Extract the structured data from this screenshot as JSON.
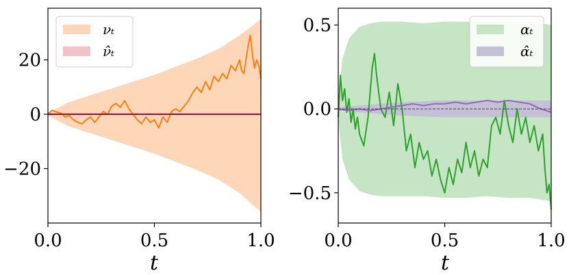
{
  "chart_data": [
    {
      "type": "line",
      "xlabel": "t",
      "xlim": [
        0.0,
        1.0
      ],
      "ylim": [
        -40,
        39
      ],
      "xticks": [
        0.0,
        0.5,
        1.0
      ],
      "xtick_labels": [
        "0.0",
        "0.5",
        "1.0"
      ],
      "yticks": [
        20,
        0,
        -20
      ],
      "ytick_labels": [
        "20",
        "0",
        "−20"
      ],
      "grid": false,
      "legend_position": "top-left",
      "series": [
        {
          "name": "νₜ",
          "kind": "band",
          "color": "#fdd7b8",
          "x": [
            0.0,
            0.1,
            0.2,
            0.3,
            0.4,
            0.5,
            0.6,
            0.7,
            0.8,
            0.9,
            1.0
          ],
          "upper": [
            0.5,
            4.5,
            7.0,
            9.5,
            12.0,
            14.5,
            17.5,
            20.5,
            24.0,
            29.0,
            35.0
          ],
          "lower": [
            -0.5,
            -4.5,
            -7.0,
            -9.5,
            -12.0,
            -14.5,
            -17.5,
            -20.5,
            -24.0,
            -29.0,
            -36.0
          ]
        },
        {
          "name": "ν̂ₜ",
          "kind": "band",
          "color": "#f2c3c6",
          "x": [
            0.0,
            0.5,
            1.0
          ],
          "upper": [
            0.5,
            0.5,
            0.5
          ],
          "lower": [
            -0.5,
            -0.5,
            -0.5
          ]
        },
        {
          "name": "nu-path",
          "kind": "line",
          "color": "#ff7f0e",
          "x": [
            0.0,
            0.02,
            0.04,
            0.06,
            0.08,
            0.1,
            0.12,
            0.14,
            0.16,
            0.18,
            0.2,
            0.22,
            0.24,
            0.26,
            0.28,
            0.3,
            0.32,
            0.34,
            0.36,
            0.38,
            0.4,
            0.42,
            0.44,
            0.46,
            0.48,
            0.5,
            0.52,
            0.54,
            0.56,
            0.58,
            0.6,
            0.62,
            0.64,
            0.66,
            0.68,
            0.7,
            0.72,
            0.74,
            0.76,
            0.78,
            0.8,
            0.82,
            0.84,
            0.86,
            0.88,
            0.9,
            0.91,
            0.92,
            0.93,
            0.94,
            0.95,
            0.96,
            0.97,
            0.98,
            0.99,
            1.0
          ],
          "y": [
            0.0,
            1.5,
            0.8,
            0.5,
            -1.0,
            -0.5,
            -2.0,
            -3.0,
            -3.5,
            -2.0,
            -1.0,
            -3.0,
            -1.0,
            1.0,
            0.0,
            3.0,
            4.0,
            2.5,
            5.0,
            2.0,
            0.0,
            -2.0,
            -3.5,
            -1.0,
            -3.0,
            -2.0,
            -5.0,
            -1.0,
            -3.0,
            1.0,
            2.0,
            1.0,
            3.0,
            5.0,
            8.0,
            10.0,
            8.0,
            12.0,
            9.0,
            14.0,
            12.0,
            15.0,
            13.0,
            18.0,
            16.0,
            20.0,
            16.0,
            15.0,
            20.0,
            25.0,
            29.0,
            22.0,
            17.0,
            20.0,
            18.0,
            13.0
          ]
        },
        {
          "name": "nu-hat-path",
          "kind": "line",
          "color": "#8b1a2b",
          "x": [
            0.0,
            1.0
          ],
          "y": [
            0.0,
            0.0
          ]
        }
      ]
    },
    {
      "type": "line",
      "xlabel": "t",
      "xlim": [
        0.0,
        1.0
      ],
      "ylim": [
        -0.68,
        0.6
      ],
      "xticks": [
        0.0,
        0.5,
        1.0
      ],
      "xtick_labels": [
        "0.0",
        "0.5",
        "1.0"
      ],
      "yticks": [
        0.5,
        0.0,
        -0.5
      ],
      "ytick_labels": [
        "0.5",
        "0.0",
        "−0.5"
      ],
      "grid": false,
      "legend_position": "top-right",
      "series": [
        {
          "name": "αₜ",
          "kind": "band",
          "color": "#c5e5c4",
          "x": [
            0.0,
            0.02,
            0.05,
            0.1,
            0.15,
            0.2,
            0.3,
            0.4,
            0.5,
            0.6,
            0.7,
            0.8,
            0.9,
            1.0
          ],
          "upper": [
            0.06,
            0.3,
            0.42,
            0.49,
            0.51,
            0.52,
            0.52,
            0.51,
            0.52,
            0.52,
            0.52,
            0.52,
            0.52,
            0.5
          ],
          "lower": [
            -0.06,
            -0.3,
            -0.42,
            -0.49,
            -0.51,
            -0.52,
            -0.52,
            -0.52,
            -0.53,
            -0.53,
            -0.52,
            -0.53,
            -0.53,
            -0.55
          ]
        },
        {
          "name": "α̂ₜ",
          "kind": "band",
          "color": "#c4c0d6",
          "x": [
            0.0,
            0.1,
            0.3,
            0.5,
            0.7,
            0.9,
            1.0
          ],
          "upper": [
            0.01,
            0.02,
            0.04,
            0.05,
            0.05,
            0.05,
            0.05
          ],
          "lower": [
            -0.01,
            -0.02,
            -0.04,
            -0.05,
            -0.05,
            -0.05,
            -0.05
          ]
        },
        {
          "name": "alpha-path",
          "kind": "line",
          "color": "#2ca02c",
          "x": [
            0.0,
            0.01,
            0.02,
            0.03,
            0.04,
            0.05,
            0.06,
            0.07,
            0.08,
            0.09,
            0.1,
            0.12,
            0.14,
            0.16,
            0.17,
            0.18,
            0.2,
            0.22,
            0.24,
            0.26,
            0.28,
            0.3,
            0.32,
            0.34,
            0.36,
            0.38,
            0.4,
            0.42,
            0.44,
            0.46,
            0.48,
            0.5,
            0.52,
            0.54,
            0.56,
            0.58,
            0.6,
            0.62,
            0.64,
            0.66,
            0.68,
            0.7,
            0.72,
            0.74,
            0.76,
            0.78,
            0.8,
            0.82,
            0.84,
            0.86,
            0.88,
            0.9,
            0.92,
            0.94,
            0.96,
            0.97,
            0.98,
            0.99,
            1.0
          ],
          "y": [
            -0.05,
            0.2,
            0.05,
            0.12,
            -0.02,
            0.06,
            -0.08,
            0.0,
            -0.12,
            -0.05,
            -0.15,
            -0.22,
            -0.05,
            0.25,
            0.33,
            0.2,
            0.0,
            -0.05,
            0.1,
            -0.1,
            0.15,
            0.0,
            -0.25,
            -0.15,
            -0.35,
            -0.2,
            -0.3,
            -0.25,
            -0.4,
            -0.3,
            -0.42,
            -0.5,
            -0.35,
            -0.45,
            -0.3,
            -0.38,
            -0.2,
            -0.35,
            -0.25,
            -0.4,
            -0.3,
            -0.35,
            -0.1,
            -0.05,
            -0.15,
            0.05,
            -0.1,
            -0.2,
            0.0,
            -0.15,
            -0.05,
            -0.2,
            -0.1,
            -0.25,
            -0.15,
            -0.35,
            -0.5,
            -0.45,
            -0.6
          ]
        },
        {
          "name": "alpha-hat-path",
          "kind": "line",
          "color": "#9467bd",
          "x": [
            0.0,
            0.05,
            0.1,
            0.15,
            0.2,
            0.25,
            0.3,
            0.35,
            0.4,
            0.45,
            0.5,
            0.55,
            0.6,
            0.65,
            0.7,
            0.75,
            0.8,
            0.85,
            0.9,
            0.95,
            1.0
          ],
          "y": [
            0.0,
            -0.01,
            0.0,
            -0.01,
            0.0,
            0.01,
            0.02,
            0.03,
            0.02,
            0.03,
            0.03,
            0.04,
            0.03,
            0.04,
            0.05,
            0.04,
            0.05,
            0.04,
            0.03,
            0.0,
            -0.02
          ]
        },
        {
          "name": "zero-line",
          "kind": "reference",
          "color": "#333333",
          "x": [
            0.0,
            1.0
          ],
          "y": [
            0.0,
            0.0
          ]
        }
      ]
    }
  ]
}
